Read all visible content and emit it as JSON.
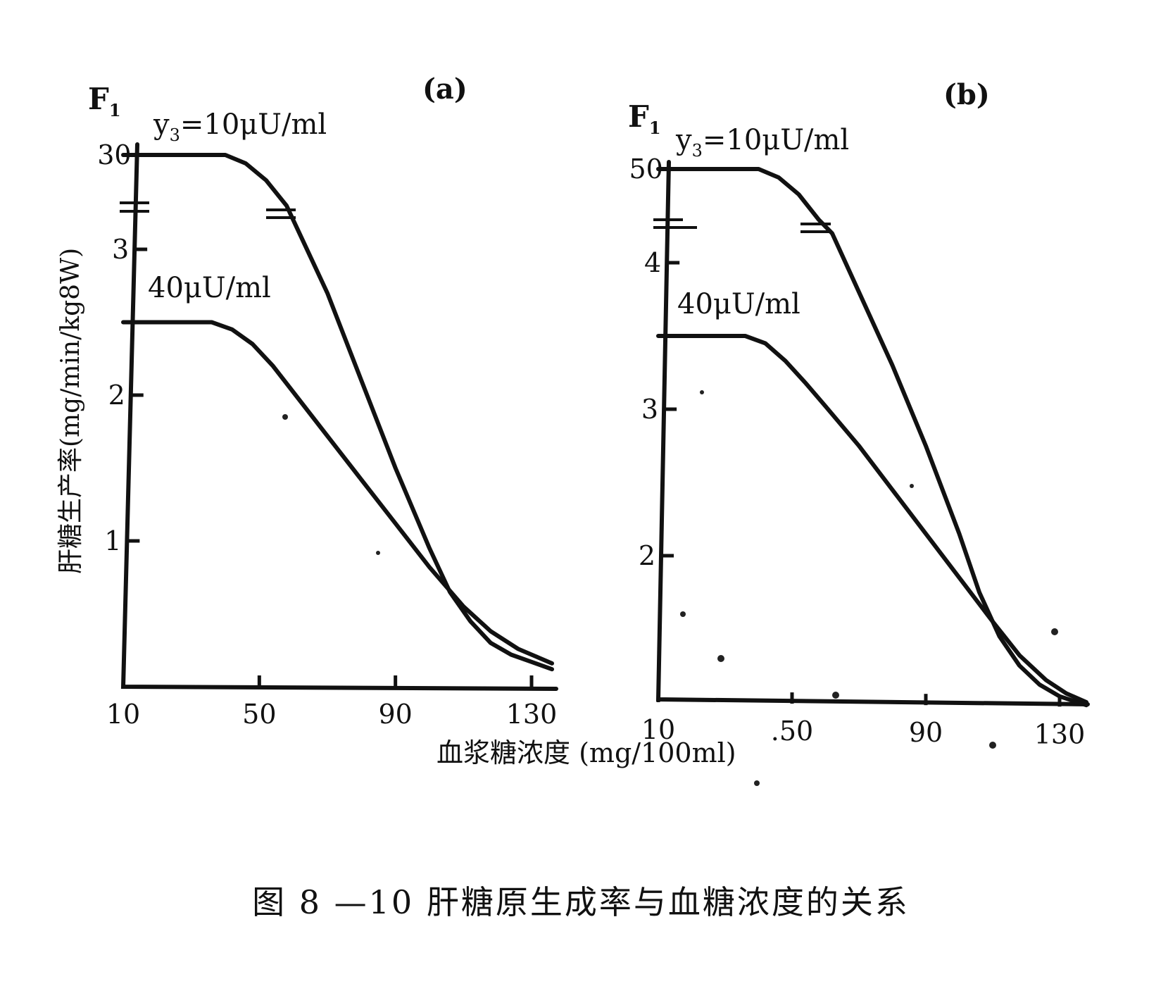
{
  "chart_data": [
    {
      "type": "line",
      "panel_label": "(a)",
      "y_axis_symbol": "F",
      "y_axis_symbol_sub": "1",
      "ylabel": "肝糖生产率(mg/min/kg8W)",
      "x_ticks": [
        "10",
        "50",
        "90",
        "130"
      ],
      "y_ticks": [
        {
          "label": "1",
          "value": 1
        },
        {
          "label": "2",
          "value": 2
        },
        {
          "label": "3",
          "value": 3
        },
        {
          "label": "30",
          "value": 30
        }
      ],
      "x_range": [
        10,
        135
      ],
      "y_break": true,
      "series": [
        {
          "name": "y3=10μU/ml",
          "name_main": "y",
          "name_sub": "3",
          "name_rest": "=10μU/ml",
          "points": [
            [
              10,
              30
            ],
            [
              40,
              30
            ],
            [
              46,
              29.5
            ],
            [
              52,
              28.5
            ],
            [
              56,
              27.5
            ],
            [
              58,
              27
            ],
            [
              62,
              3.1
            ],
            [
              70,
              2.7
            ],
            [
              80,
              2.1
            ],
            [
              90,
              1.5
            ],
            [
              100,
              0.95
            ],
            [
              106,
              0.65
            ],
            [
              112,
              0.45
            ],
            [
              118,
              0.3
            ],
            [
              124,
              0.22
            ],
            [
              130,
              0.17
            ],
            [
              136,
              0.12
            ]
          ]
        },
        {
          "name": "40μU/ml",
          "points": [
            [
              10,
              2.5
            ],
            [
              36,
              2.5
            ],
            [
              42,
              2.45
            ],
            [
              48,
              2.35
            ],
            [
              54,
              2.2
            ],
            [
              60,
              2.02
            ],
            [
              70,
              1.72
            ],
            [
              80,
              1.42
            ],
            [
              90,
              1.12
            ],
            [
              100,
              0.82
            ],
            [
              110,
              0.55
            ],
            [
              118,
              0.38
            ],
            [
              126,
              0.26
            ],
            [
              132,
              0.2
            ],
            [
              136,
              0.16
            ]
          ]
        }
      ]
    },
    {
      "type": "line",
      "panel_label": "(b)",
      "y_axis_symbol": "F",
      "y_axis_symbol_sub": "1",
      "x_ticks": [
        "10",
        ".50",
        "90",
        "130"
      ],
      "y_ticks": [
        {
          "label": "2",
          "value": 2
        },
        {
          "label": "3",
          "value": 3
        },
        {
          "label": "4",
          "value": 4
        },
        {
          "label": "50",
          "value": 50
        }
      ],
      "x_range": [
        10,
        138
      ],
      "y_break": true,
      "series": [
        {
          "name": "y3=10μU/ml",
          "name_main": "y",
          "name_sub": "3",
          "name_rest": "=10μU/ml",
          "points": [
            [
              10,
              50
            ],
            [
              40,
              50
            ],
            [
              46,
              49.5
            ],
            [
              52,
              48.5
            ],
            [
              56,
              47.5
            ],
            [
              58,
              47
            ],
            [
              62,
              4.2
            ],
            [
              70,
              3.8
            ],
            [
              80,
              3.3
            ],
            [
              90,
              2.75
            ],
            [
              100,
              2.15
            ],
            [
              106,
              1.75
            ],
            [
              112,
              1.45
            ],
            [
              118,
              1.25
            ],
            [
              124,
              1.12
            ],
            [
              130,
              1.04
            ],
            [
              138,
              0.98
            ]
          ]
        },
        {
          "name": "40μU/ml",
          "points": [
            [
              10,
              3.5
            ],
            [
              36,
              3.5
            ],
            [
              42,
              3.45
            ],
            [
              48,
              3.33
            ],
            [
              54,
              3.18
            ],
            [
              60,
              3.02
            ],
            [
              70,
              2.75
            ],
            [
              80,
              2.45
            ],
            [
              90,
              2.15
            ],
            [
              100,
              1.85
            ],
            [
              110,
              1.55
            ],
            [
              118,
              1.32
            ],
            [
              126,
              1.15
            ],
            [
              132,
              1.06
            ],
            [
              138,
              1.0
            ]
          ]
        }
      ]
    }
  ],
  "xlabel": "血浆糖浓度 (mg/100ml)",
  "caption": "图 8 —10   肝糖原生成率与血糖浓度的关系"
}
